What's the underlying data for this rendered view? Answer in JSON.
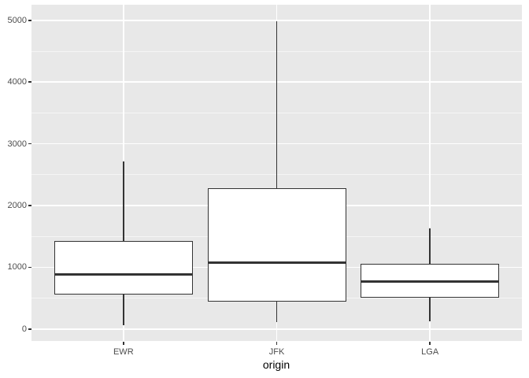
{
  "chart_data": {
    "type": "boxplot",
    "title": "",
    "xlabel": "origin",
    "ylabel": "",
    "categories": [
      "EWR",
      "JFK",
      "LGA"
    ],
    "y_ticks": [
      0,
      1000,
      2000,
      3000,
      4000,
      5000
    ],
    "y_minor_ticks": [
      500,
      1500,
      2500,
      3500,
      4500
    ],
    "ylim": [
      -200,
      5240
    ],
    "grid": "on",
    "legend": "none",
    "series": [
      {
        "name": "EWR",
        "whisker_low": 65,
        "q1": 570,
        "median": 885,
        "q3": 1415,
        "whisker_high": 2715,
        "outliers": []
      },
      {
        "name": "JFK",
        "whisker_low": 115,
        "q1": 450,
        "median": 1080,
        "q3": 2265,
        "whisker_high": 4980,
        "outliers": []
      },
      {
        "name": "LGA",
        "whisker_low": 130,
        "q1": 520,
        "median": 775,
        "q3": 1045,
        "whisker_high": 1625,
        "outliers": []
      }
    ],
    "colors": {
      "panel_background": "#E8E8E8",
      "gridline": "#FFFFFF",
      "box_border": "#333333",
      "box_fill": "#FFFFFF",
      "axis_text": "#4D4D4D",
      "axis_title": "#000000"
    }
  }
}
